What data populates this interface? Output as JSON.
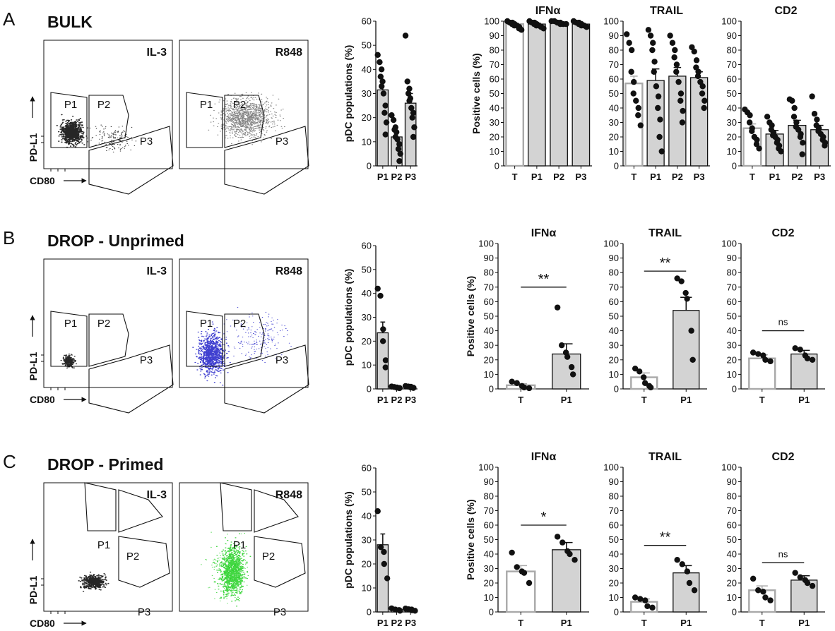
{
  "figure": {
    "rows": [
      {
        "panel_letter": "A",
        "title": "BULK",
        "flow": {
          "y_label": "PD-L1",
          "x_label": "CD80",
          "plots": [
            {
              "condition": "IL-3",
              "dot_color": "#000000",
              "overlay": false,
              "gates": [
                "P1",
                "P2",
                "P3"
              ]
            },
            {
              "condition": "R848",
              "dot_color": "#6e6e6e",
              "overlay": false,
              "gates": [
                "P1",
                "P2",
                "P3"
              ]
            }
          ]
        }
      },
      {
        "panel_letter": "B",
        "title": "DROP - Unprimed",
        "flow": {
          "y_label": "PD-L1",
          "x_label": "CD80",
          "plots": [
            {
              "condition": "IL-3",
              "dot_color": "#000000",
              "overlay": false,
              "gates": [
                "P1",
                "P2",
                "P3"
              ]
            },
            {
              "condition": "R848",
              "dot_color": "#1f1fc8",
              "overlay": true,
              "gates": [
                "P1",
                "P2",
                "P3"
              ]
            }
          ]
        }
      },
      {
        "panel_letter": "C",
        "title": "DROP - Primed",
        "flow": {
          "y_label": "PD-L1",
          "x_label": "CD80",
          "plots": [
            {
              "condition": "IL-3",
              "dot_color": "#000000",
              "overlay": false,
              "gates": [
                "P1",
                "P2",
                "P3"
              ]
            },
            {
              "condition": "R848",
              "dot_color": "#22d022",
              "overlay": true,
              "gates": [
                "P1",
                "P2",
                "P3"
              ]
            }
          ]
        }
      }
    ]
  },
  "chart_data": [
    {
      "type": "bar",
      "row": "A",
      "title": "",
      "ylabel": "pDC populations  (%)",
      "ylim": [
        0,
        60
      ],
      "ytick_step": 10,
      "categories": [
        "P1",
        "P2",
        "P3"
      ],
      "values": [
        31.5,
        12,
        26
      ],
      "errors": [
        3,
        2,
        4
      ],
      "bar_fill": [
        "#d3d3d3",
        "#d3d3d3",
        "#d3d3d3"
      ],
      "points": [
        [
          46,
          43,
          40,
          37,
          35,
          33,
          30,
          25,
          22,
          18,
          13
        ],
        [
          21,
          19,
          16,
          15,
          14,
          12,
          11,
          9,
          7,
          5,
          2
        ],
        [
          54,
          35,
          32,
          30,
          28,
          27,
          24,
          22,
          20,
          16,
          12
        ]
      ],
      "significance": null
    },
    {
      "type": "bar",
      "row": "A",
      "title": "IFNα",
      "ylabel": "Positive cells (%)",
      "ylim": [
        0,
        100
      ],
      "ytick_step": 10,
      "categories": [
        "T",
        "P1",
        "P2",
        "P3"
      ],
      "values": [
        98,
        98,
        99,
        98
      ],
      "errors": [
        0.7,
        0.7,
        0.4,
        0.6
      ],
      "bar_fill": [
        "#ffffff",
        "#d3d3d3",
        "#d3d3d3",
        "#d3d3d3"
      ],
      "points": [
        [
          100,
          99,
          99,
          98,
          98,
          97,
          97,
          96,
          95,
          94
        ],
        [
          100,
          99,
          99,
          98,
          98,
          97,
          97,
          96,
          96,
          95
        ],
        [
          100,
          100,
          99,
          99,
          99,
          98,
          98,
          98
        ],
        [
          100,
          99,
          99,
          98,
          98,
          97,
          97,
          96,
          96
        ]
      ],
      "significance": null
    },
    {
      "type": "bar",
      "row": "A",
      "title": "TRAIL",
      "ylabel": "",
      "ylim": [
        0,
        100
      ],
      "ytick_step": 10,
      "categories": [
        "T",
        "P1",
        "P2",
        "P3"
      ],
      "values": [
        57,
        59,
        62,
        61
      ],
      "errors": [
        5,
        8,
        6,
        4
      ],
      "bar_fill": [
        "#ffffff",
        "#d3d3d3",
        "#d3d3d3",
        "#d3d3d3"
      ],
      "points": [
        [
          91,
          85,
          80,
          65,
          58,
          50,
          45,
          40,
          35,
          28
        ],
        [
          94,
          90,
          85,
          80,
          72,
          65,
          55,
          48,
          40,
          32,
          20,
          10
        ],
        [
          90,
          85,
          80,
          75,
          70,
          65,
          58,
          50,
          45,
          38,
          30
        ],
        [
          82,
          79,
          73,
          68,
          65,
          62,
          58,
          55,
          50,
          45,
          40
        ]
      ],
      "significance": null
    },
    {
      "type": "bar",
      "row": "A",
      "title": "CD2",
      "ylabel": "",
      "ylim": [
        0,
        100
      ],
      "ytick_step": 10,
      "categories": [
        "T",
        "P1",
        "P2",
        "P3"
      ],
      "values": [
        26,
        22,
        28,
        25
      ],
      "errors": [
        3,
        2.5,
        3.5,
        3
      ],
      "bar_fill": [
        "#ffffff",
        "#d3d3d3",
        "#d3d3d3",
        "#d3d3d3"
      ],
      "points": [
        [
          39,
          37,
          35,
          30,
          26,
          24,
          20,
          18,
          15,
          12
        ],
        [
          34,
          30,
          28,
          25,
          23,
          21,
          20,
          18,
          16,
          14,
          12,
          10
        ],
        [
          46,
          45,
          40,
          34,
          30,
          27,
          25,
          22,
          20,
          16,
          8
        ],
        [
          48,
          36,
          32,
          28,
          26,
          24,
          22,
          20,
          18,
          16,
          14
        ]
      ],
      "significance": null
    },
    {
      "type": "bar",
      "row": "B",
      "title": "",
      "ylabel": "pDC populations  (%)",
      "ylim": [
        0,
        60
      ],
      "ytick_step": 10,
      "categories": [
        "P1",
        "P2",
        "P3"
      ],
      "values": [
        23.5,
        0.6,
        0.8
      ],
      "errors": [
        4.5,
        0.2,
        0.3
      ],
      "bar_fill": [
        "#d3d3d3",
        "#d3d3d3",
        "#d3d3d3"
      ],
      "points": [
        [
          42,
          39,
          25,
          20,
          12,
          9
        ],
        [
          1,
          0.8,
          0.6,
          0.5,
          0.4,
          0.3
        ],
        [
          1.2,
          1,
          0.9,
          0.6,
          0.5,
          0.4
        ]
      ],
      "significance": null
    },
    {
      "type": "bar",
      "row": "B",
      "title": "IFNα",
      "ylabel": "Positive cells (%)",
      "ylim": [
        0,
        100
      ],
      "ytick_step": 10,
      "categories": [
        "T",
        "P1"
      ],
      "values": [
        2.5,
        24
      ],
      "errors": [
        1,
        7
      ],
      "bar_fill": [
        "#ffffff",
        "#d3d3d3"
      ],
      "points": [
        [
          5,
          4,
          2,
          1,
          0.5
        ],
        [
          56,
          30,
          25,
          22,
          15,
          10
        ]
      ],
      "significance": {
        "label": "**",
        "value": 70
      }
    },
    {
      "type": "bar",
      "row": "B",
      "title": "TRAIL",
      "ylabel": "",
      "ylim": [
        0,
        100
      ],
      "ytick_step": 10,
      "categories": [
        "T",
        "P1"
      ],
      "values": [
        8,
        54
      ],
      "errors": [
        3,
        9
      ],
      "bar_fill": [
        "#ffffff",
        "#d3d3d3"
      ],
      "points": [
        [
          14,
          12,
          8,
          4,
          2,
          1
        ],
        [
          76,
          74,
          66,
          62,
          40,
          20
        ]
      ],
      "significance": {
        "label": "**",
        "value": 81
      }
    },
    {
      "type": "bar",
      "row": "B",
      "title": "CD2",
      "ylabel": "",
      "ylim": [
        0,
        100
      ],
      "ytick_step": 10,
      "categories": [
        "T",
        "P1"
      ],
      "values": [
        21,
        24
      ],
      "errors": [
        2.5,
        2.5
      ],
      "bar_fill": [
        "#ffffff",
        "#d3d3d3"
      ],
      "points": [
        [
          25,
          24,
          23,
          20,
          19
        ],
        [
          28,
          27,
          23,
          21,
          20
        ]
      ],
      "significance": {
        "label": "ns",
        "value": 40
      }
    },
    {
      "type": "bar",
      "row": "C",
      "title": "",
      "ylabel": "pDC populations  (%)",
      "ylim": [
        0,
        60
      ],
      "ytick_step": 10,
      "categories": [
        "P1",
        "P2",
        "P3"
      ],
      "values": [
        28,
        1,
        1
      ],
      "errors": [
        4.5,
        0.3,
        0.3
      ],
      "bar_fill": [
        "#d3d3d3",
        "#d3d3d3",
        "#d3d3d3"
      ],
      "points": [
        [
          42,
          27,
          25,
          20,
          14
        ],
        [
          1.5,
          1,
          0.8,
          0.5
        ],
        [
          1.4,
          1.1,
          1,
          0.7,
          0.5
        ]
      ],
      "significance": null
    },
    {
      "type": "bar",
      "row": "C",
      "title": "IFNα",
      "ylabel": "Positive cells (%)",
      "ylim": [
        0,
        100
      ],
      "ytick_step": 10,
      "categories": [
        "T",
        "P1"
      ],
      "values": [
        28,
        43
      ],
      "errors": [
        4,
        5
      ],
      "bar_fill": [
        "#ffffff",
        "#d3d3d3"
      ],
      "points": [
        [
          41,
          31,
          28,
          27,
          20
        ],
        [
          52,
          48,
          42,
          40,
          36
        ]
      ],
      "significance": {
        "label": "*",
        "value": 60
      }
    },
    {
      "type": "bar",
      "row": "C",
      "title": "TRAIL",
      "ylabel": "",
      "ylim": [
        0,
        100
      ],
      "ytick_step": 10,
      "categories": [
        "T",
        "P1"
      ],
      "values": [
        7,
        27
      ],
      "errors": [
        2,
        5
      ],
      "bar_fill": [
        "#ffffff",
        "#d3d3d3"
      ],
      "points": [
        [
          10,
          9,
          8,
          4,
          3
        ],
        [
          36,
          33,
          28,
          20,
          15
        ]
      ],
      "significance": {
        "label": "**",
        "value": 46
      }
    },
    {
      "type": "bar",
      "row": "C",
      "title": "CD2",
      "ylabel": "",
      "ylim": [
        0,
        100
      ],
      "ytick_step": 10,
      "categories": [
        "T",
        "P1"
      ],
      "values": [
        15,
        22
      ],
      "errors": [
        3,
        3
      ],
      "bar_fill": [
        "#ffffff",
        "#d3d3d3"
      ],
      "points": [
        [
          23,
          15,
          14,
          10,
          8
        ],
        [
          27,
          24,
          22,
          20,
          18
        ]
      ],
      "significance": {
        "label": "ns",
        "value": 34
      }
    }
  ]
}
